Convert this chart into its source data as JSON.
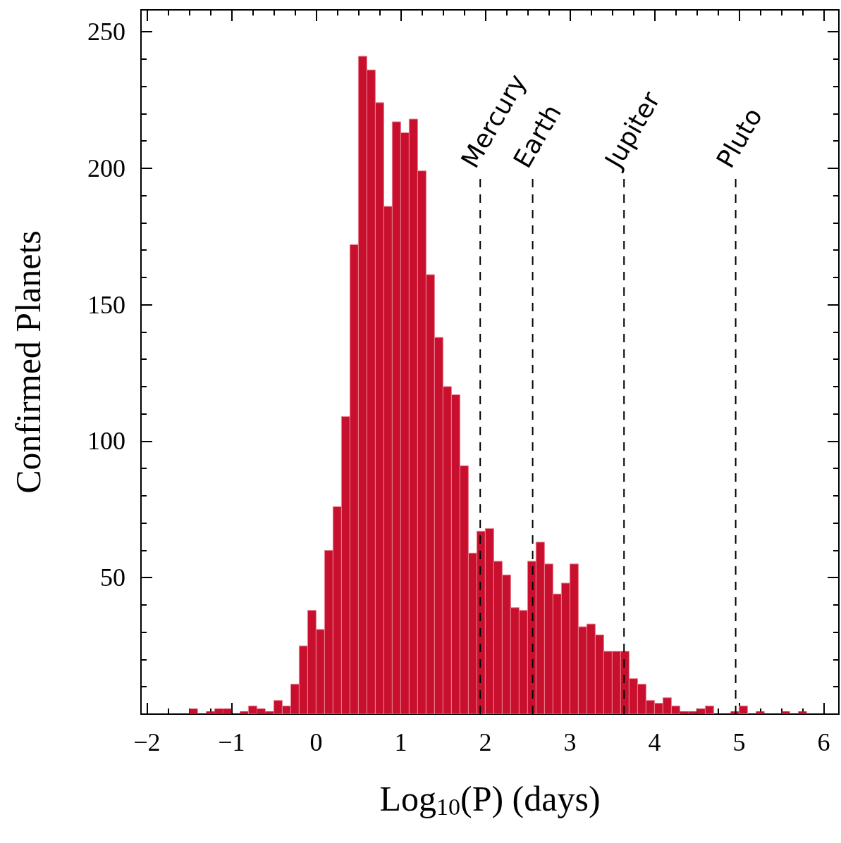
{
  "chart_data": {
    "type": "histogram",
    "xlabel": "Log$_{10}$(P) (days)",
    "ylabel": "Confirmed Planets",
    "bins": [
      -1.5,
      -1.4,
      -1.3,
      -1.2,
      -1.1,
      -1.0,
      -0.9,
      -0.8,
      -0.7,
      -0.6,
      -0.5,
      -0.4,
      -0.3,
      -0.2,
      -0.1,
      0.0,
      0.1,
      0.2,
      0.3,
      0.4,
      0.5,
      0.6,
      0.7,
      0.8,
      0.9,
      1.0,
      1.1,
      1.2,
      1.3,
      1.4,
      1.5,
      1.6,
      1.7,
      1.8,
      1.9,
      2.0,
      2.1,
      2.2,
      2.3,
      2.4,
      2.5,
      2.6,
      2.7,
      2.8,
      2.9,
      3.0,
      3.1,
      3.2,
      3.3,
      3.4,
      3.5,
      3.6,
      3.7,
      3.8,
      3.9,
      4.0,
      4.1,
      4.2,
      4.3,
      4.4,
      4.5,
      4.6,
      4.7,
      4.8,
      4.9,
      5.0,
      5.1,
      5.2,
      5.3,
      5.4,
      5.5,
      5.6,
      5.7,
      5.8
    ],
    "values": [
      2,
      0,
      1,
      2,
      2,
      0,
      1,
      3,
      2,
      1,
      5,
      3,
      11,
      25,
      38,
      31,
      60,
      76,
      109,
      172,
      241,
      236,
      224,
      186,
      217,
      213,
      218,
      199,
      161,
      138,
      120,
      117,
      91,
      59,
      67,
      68,
      56,
      51,
      39,
      38,
      56,
      63,
      55,
      44,
      48,
      55,
      32,
      33,
      29,
      23,
      23,
      23,
      13,
      11,
      5,
      4,
      6,
      3,
      1,
      1,
      2,
      3,
      0,
      0,
      1,
      3,
      0,
      1,
      0,
      0,
      1,
      0,
      1
    ],
    "color": "#c8102e",
    "xlim": [
      -2.07,
      6.18
    ],
    "xticks": [
      -2,
      -1,
      0,
      1,
      2,
      3,
      4,
      5,
      6
    ],
    "ylim": [
      0,
      258
    ],
    "yticks": [
      50,
      100,
      150,
      200,
      250
    ],
    "grid": false,
    "ref_lines": [
      {
        "axis": "x",
        "value": 1.94,
        "label": "Mercury",
        "color": "#000000",
        "line_style": "dashed"
      },
      {
        "axis": "x",
        "value": 2.56,
        "label": "Earth",
        "color": "#000000",
        "line_style": "dashed"
      },
      {
        "axis": "x",
        "value": 3.64,
        "label": "Jupiter",
        "color": "#000000",
        "line_style": "dashed"
      },
      {
        "axis": "x",
        "value": 4.96,
        "label": "Pluto",
        "color": "#000000",
        "line_style": "dashed"
      }
    ]
  }
}
